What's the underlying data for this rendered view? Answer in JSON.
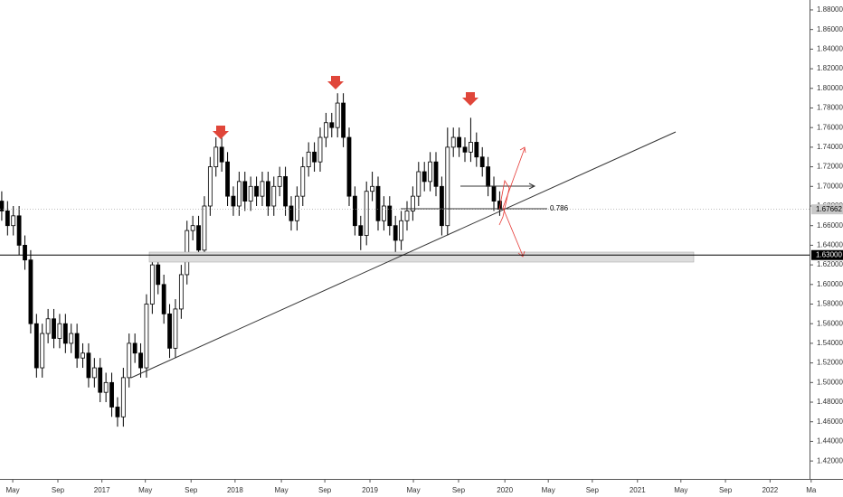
{
  "chart_data": {
    "type": "candlestick",
    "open": [
      1.685,
      1.675,
      1.66,
      1.67,
      1.64,
      1.625,
      1.56,
      1.515,
      1.55,
      1.565,
      1.545,
      1.56,
      1.54,
      1.55,
      1.525,
      1.53,
      1.505,
      1.515,
      1.49,
      1.5,
      1.475,
      1.465,
      1.505,
      1.54,
      1.53,
      1.515,
      1.58,
      1.62,
      1.6,
      1.57,
      1.535,
      1.575,
      1.61,
      1.655,
      1.66,
      1.635,
      1.68,
      1.72,
      1.74,
      1.725,
      1.69,
      1.68,
      1.705,
      1.685,
      1.7,
      1.69,
      1.705,
      1.68,
      1.7,
      1.71,
      1.68,
      1.665,
      1.69,
      1.72,
      1.735,
      1.725,
      1.75,
      1.765,
      1.76,
      1.785,
      1.75,
      1.69,
      1.66,
      1.65,
      1.695,
      1.7,
      1.665,
      1.68,
      1.66,
      1.645,
      1.665,
      1.675,
      1.69,
      1.715,
      1.705,
      1.725,
      1.7,
      1.66,
      1.74,
      1.75,
      1.74,
      1.735,
      1.745,
      1.73,
      1.72,
      1.7,
      1.685
    ],
    "high": [
      1.695,
      1.685,
      1.68,
      1.68,
      1.65,
      1.635,
      1.57,
      1.56,
      1.575,
      1.575,
      1.57,
      1.57,
      1.56,
      1.56,
      1.54,
      1.54,
      1.525,
      1.525,
      1.51,
      1.51,
      1.485,
      1.515,
      1.55,
      1.55,
      1.54,
      1.59,
      1.63,
      1.63,
      1.61,
      1.58,
      1.585,
      1.62,
      1.665,
      1.67,
      1.67,
      1.69,
      1.73,
      1.75,
      1.75,
      1.735,
      1.7,
      1.715,
      1.715,
      1.71,
      1.71,
      1.715,
      1.715,
      1.71,
      1.72,
      1.72,
      1.69,
      1.7,
      1.73,
      1.745,
      1.745,
      1.76,
      1.775,
      1.775,
      1.795,
      1.795,
      1.76,
      1.7,
      1.67,
      1.705,
      1.715,
      1.71,
      1.69,
      1.69,
      1.67,
      1.675,
      1.685,
      1.7,
      1.725,
      1.725,
      1.735,
      1.735,
      1.71,
      1.76,
      1.76,
      1.76,
      1.75,
      1.77,
      1.755,
      1.74,
      1.73,
      1.71,
      1.695
    ],
    "low": [
      1.665,
      1.65,
      1.65,
      1.63,
      1.615,
      1.55,
      1.505,
      1.505,
      1.54,
      1.535,
      1.535,
      1.53,
      1.53,
      1.515,
      1.515,
      1.495,
      1.495,
      1.48,
      1.48,
      1.465,
      1.455,
      1.455,
      1.495,
      1.52,
      1.505,
      1.505,
      1.57,
      1.59,
      1.56,
      1.525,
      1.525,
      1.565,
      1.6,
      1.645,
      1.625,
      1.625,
      1.67,
      1.71,
      1.715,
      1.68,
      1.67,
      1.67,
      1.675,
      1.675,
      1.68,
      1.68,
      1.67,
      1.67,
      1.69,
      1.67,
      1.655,
      1.655,
      1.68,
      1.71,
      1.715,
      1.715,
      1.74,
      1.75,
      1.75,
      1.74,
      1.68,
      1.65,
      1.635,
      1.64,
      1.685,
      1.655,
      1.655,
      1.65,
      1.63,
      1.635,
      1.655,
      1.665,
      1.68,
      1.695,
      1.695,
      1.69,
      1.65,
      1.65,
      1.73,
      1.73,
      1.725,
      1.725,
      1.72,
      1.71,
      1.69,
      1.675,
      1.67
    ],
    "close": [
      1.675,
      1.66,
      1.67,
      1.64,
      1.625,
      1.56,
      1.515,
      1.55,
      1.565,
      1.545,
      1.56,
      1.54,
      1.55,
      1.525,
      1.53,
      1.505,
      1.515,
      1.49,
      1.5,
      1.475,
      1.465,
      1.505,
      1.54,
      1.53,
      1.515,
      1.58,
      1.62,
      1.6,
      1.57,
      1.535,
      1.575,
      1.61,
      1.655,
      1.66,
      1.635,
      1.68,
      1.72,
      1.74,
      1.725,
      1.69,
      1.68,
      1.705,
      1.685,
      1.7,
      1.69,
      1.705,
      1.68,
      1.7,
      1.71,
      1.68,
      1.665,
      1.69,
      1.72,
      1.735,
      1.725,
      1.75,
      1.765,
      1.76,
      1.785,
      1.75,
      1.69,
      1.66,
      1.65,
      1.695,
      1.7,
      1.665,
      1.68,
      1.66,
      1.645,
      1.665,
      1.675,
      1.69,
      1.715,
      1.705,
      1.725,
      1.7,
      1.66,
      1.74,
      1.75,
      1.74,
      1.735,
      1.745,
      1.73,
      1.72,
      1.7,
      1.685,
      1.67662
    ],
    "xlim": [
      -0.3,
      140.3
    ],
    "xticks": [
      {
        "value": 1.9,
        "label": "May"
      },
      {
        "value": 9.7,
        "label": "Sep"
      },
      {
        "value": 17.3,
        "label": "2017"
      },
      {
        "value": 24.8,
        "label": "May"
      },
      {
        "value": 32.7,
        "label": "Sep"
      },
      {
        "value": 40.3,
        "label": "2018"
      },
      {
        "value": 48.3,
        "label": "May"
      },
      {
        "value": 55.8,
        "label": "Sep"
      },
      {
        "value": 63.6,
        "label": "2019"
      },
      {
        "value": 71.1,
        "label": "May"
      },
      {
        "value": 78.9,
        "label": "Sep"
      },
      {
        "value": 86.9,
        "label": "2020"
      },
      {
        "value": 94.4,
        "label": "May"
      },
      {
        "value": 102,
        "label": "Sep"
      },
      {
        "value": 109.8,
        "label": "2021"
      },
      {
        "value": 117.3,
        "label": "May"
      },
      {
        "value": 125,
        "label": "Sep"
      },
      {
        "value": 132.7,
        "label": "2022"
      },
      {
        "value": 139.8,
        "label": "Ma"
      }
    ],
    "ylim": [
      1.4017,
      1.8901
    ],
    "yticks": [
      {
        "value": 1.42,
        "label": "1.42000"
      },
      {
        "value": 1.44,
        "label": "1.44000"
      },
      {
        "value": 1.46,
        "label": "1.46000"
      },
      {
        "value": 1.48,
        "label": "1.48000"
      },
      {
        "value": 1.5,
        "label": "1.50000"
      },
      {
        "value": 1.52,
        "label": "1.52000"
      },
      {
        "value": 1.54,
        "label": "1.54000"
      },
      {
        "value": 1.56,
        "label": "1.56000"
      },
      {
        "value": 1.58,
        "label": "1.58000"
      },
      {
        "value": 1.6,
        "label": "1.60000"
      },
      {
        "value": 1.62,
        "label": "1.62000"
      },
      {
        "value": 1.64,
        "label": "1.64000"
      },
      {
        "value": 1.66,
        "label": "1.66000"
      },
      {
        "value": 1.68,
        "label": "1.68000"
      },
      {
        "value": 1.7,
        "label": "1.70000"
      },
      {
        "value": 1.72,
        "label": "1.72000"
      },
      {
        "value": 1.74,
        "label": "1.74000"
      },
      {
        "value": 1.76,
        "label": "1.76000"
      },
      {
        "value": 1.78,
        "label": "1.78000"
      },
      {
        "value": 1.8,
        "label": "1.80000"
      },
      {
        "value": 1.82,
        "label": "1.82000"
      },
      {
        "value": 1.84,
        "label": "1.84000"
      },
      {
        "value": 1.86,
        "label": "1.86000"
      },
      {
        "value": 1.88,
        "label": "1.88000"
      }
    ],
    "price_lines": [
      {
        "value": 1.67662,
        "label": "1.67662"
      },
      {
        "value": 1.63,
        "label": "1.63000"
      }
    ],
    "fib_level": 0.786
  }
}
